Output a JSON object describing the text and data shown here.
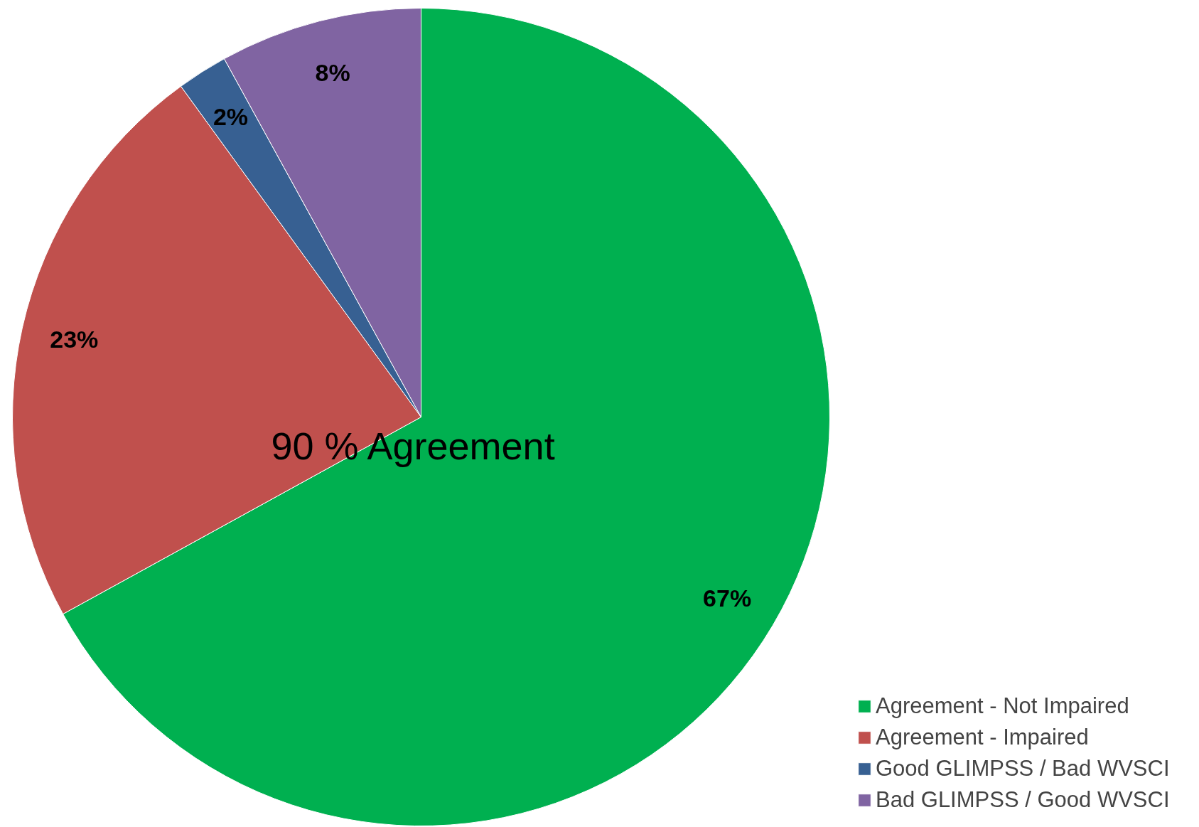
{
  "chart_data": {
    "type": "pie",
    "categories": [
      "Agreement - Not Impaired",
      "Agreement - Impaired",
      "Good GLIMPSS / Bad WVSCI",
      "Bad GLIMPSS / Good WVSCI"
    ],
    "values": [
      67,
      23,
      2,
      8
    ],
    "colors": [
      "#00b050",
      "#c0504d",
      "#376092",
      "#8064a2"
    ],
    "value_labels": [
      "67%",
      "23%",
      "2%",
      "8%"
    ],
    "annotations": [
      "90 % Agreement"
    ],
    "legend": "bottom right"
  }
}
